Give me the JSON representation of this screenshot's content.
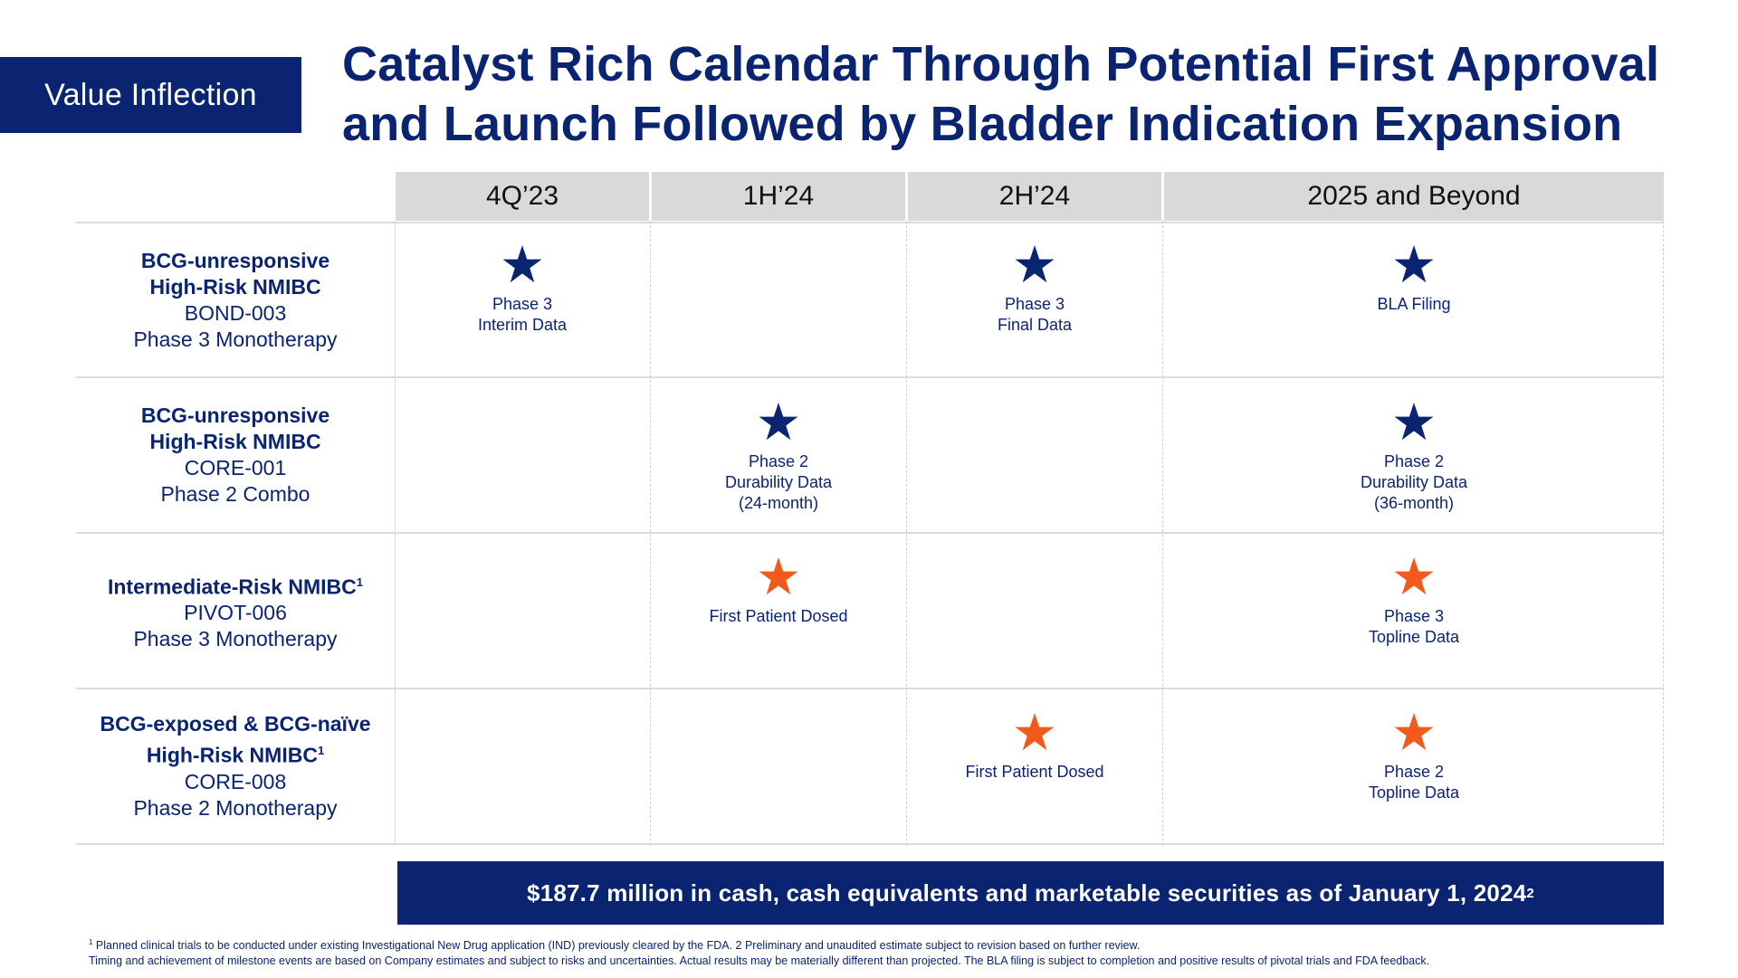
{
  "tag": "Value Inflection",
  "title": {
    "line1": "Catalyst Rich Calendar Through Potential First Approval",
    "line2": "and Launch Followed by Bladder Indication Expansion"
  },
  "columns": [
    "4Q’23",
    "1H’24",
    "2H’24",
    "2025 and Beyond"
  ],
  "rows": [
    {
      "bold1": "BCG-unresponsive",
      "bold2": "High-Risk NMIBC",
      "trial": "BOND-003",
      "design": "Phase 3 Monotherapy"
    },
    {
      "bold1": "BCG-unresponsive",
      "bold2": "High-Risk NMIBC",
      "trial": "CORE-001",
      "design": "Phase 2 Combo"
    },
    {
      "bold1": "Intermediate-Risk NMIBC",
      "sup1": "1",
      "trial": "PIVOT-006",
      "design": "Phase 3 Monotherapy"
    },
    {
      "bold1": "BCG-exposed & BCG-naïve",
      "bold2": "High-Risk NMIBC",
      "sup2": "1",
      "trial": "CORE-008",
      "design": "Phase 2 Monotherapy"
    }
  ],
  "milestones": {
    "r0c0": "Phase 3\nInterim Data",
    "r0c2": "Phase 3\nFinal Data",
    "r0c3": "BLA Filing",
    "r1c1": "Phase 2\nDurability Data\n(24-month)",
    "r1c3": "Phase 2\nDurability Data\n(36-month)",
    "r2c1": "First Patient Dosed",
    "r2c3": "Phase 3\nTopline Data",
    "r3c2": "First Patient Dosed",
    "r3c3": "Phase 2\nTopline Data"
  },
  "colors": {
    "navy": "#0a2472",
    "orange": "#f25a1d",
    "header_gray": "#d9d9d9"
  },
  "icons": {
    "navy_star": "star-icon",
    "orange_star": "star-icon"
  },
  "banner": {
    "text": "$187.7 million in cash, cash equivalents and marketable securities as of January 1, 2024",
    "sup": "2"
  },
  "footnotes": {
    "sup": "1",
    "line1": " Planned clinical trials to be conducted under existing Investigational New Drug application (IND) previously cleared by the FDA. 2 Preliminary and unaudited estimate subject to revision based on further review.",
    "line2": "Timing and achievement of milestone events are based on Company estimates and subject to risks and uncertainties. Actual results may be materially different than projected. The BLA filing is subject to completion and positive results of pivotal trials and FDA feedback."
  }
}
